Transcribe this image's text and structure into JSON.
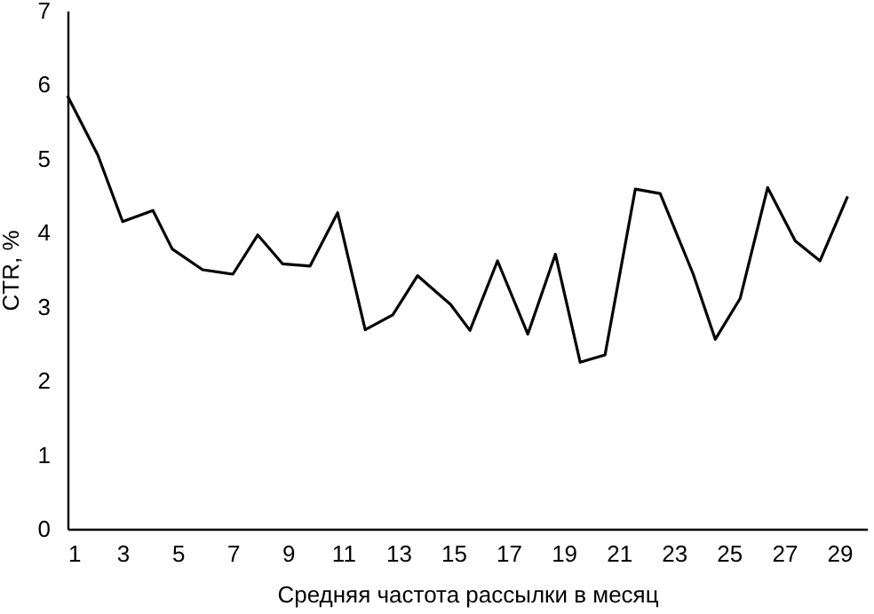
{
  "chart_data": {
    "type": "line",
    "xlabel": "Средняя частота рассылки в месяц",
    "ylabel": "CTR, %",
    "x": [
      1,
      2.1,
      3.0,
      4.1,
      4.8,
      5.9,
      7.0,
      7.9,
      8.8,
      9.8,
      10.8,
      11.8,
      12.8,
      13.7,
      14.9,
      15.6,
      16.6,
      17.7,
      18.7,
      19.6,
      20.5,
      21.6,
      22.5,
      23.7,
      24.5,
      25.4,
      26.4,
      27.4,
      28.3,
      29.3
    ],
    "series": [
      {
        "color": "#000000",
        "values": [
          5.85,
          5.05,
          4.15,
          4.3,
          3.78,
          3.5,
          3.44,
          3.97,
          3.58,
          3.55,
          4.27,
          2.69,
          2.89,
          3.42,
          3.03,
          2.68,
          3.62,
          2.63,
          3.71,
          2.25,
          2.35,
          4.59,
          4.53,
          3.44,
          2.56,
          3.11,
          4.61,
          3.89,
          3.62,
          4.49
        ]
      }
    ],
    "xlim": [
      1,
      30
    ],
    "xticks": [
      1,
      3,
      5,
      7,
      9,
      11,
      13,
      15,
      17,
      19,
      21,
      23,
      25,
      27,
      29
    ],
    "ylim": [
      0,
      7
    ],
    "yticks": [
      0,
      1,
      2,
      3,
      4,
      5,
      6,
      7
    ],
    "grid": false,
    "marker": "none",
    "line_style": "solid"
  }
}
